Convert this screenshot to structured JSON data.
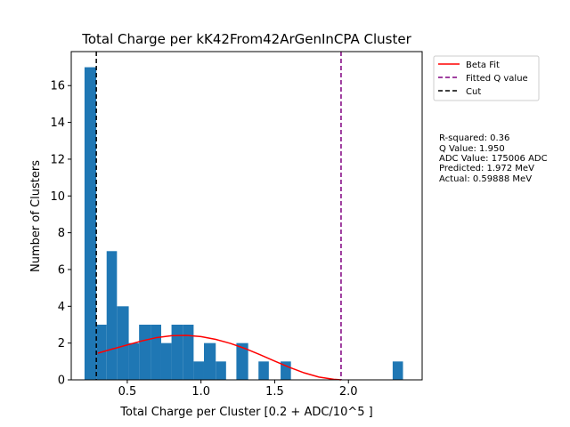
{
  "chart_data": {
    "type": "bar",
    "title": "Total Charge per kK42From42ArGenInCPA Cluster",
    "xlabel": "Total Charge per Cluster [0.2 + ADC/10^5 ]",
    "ylabel": "Number of Clusters",
    "xlim": [
      0.12,
      2.5
    ],
    "ylim": [
      0,
      17.85
    ],
    "xticks": [
      "0.5",
      "1.0",
      "1.5",
      "2.0"
    ],
    "xtick_values": [
      0.5,
      1.0,
      1.5,
      2.0
    ],
    "yticks": [
      "0",
      "2",
      "4",
      "6",
      "8",
      "10",
      "12",
      "14",
      "16"
    ],
    "ytick_values": [
      0,
      2,
      4,
      6,
      8,
      10,
      12,
      14,
      16
    ],
    "bar_color": "#1f77b4",
    "bins": [
      {
        "x0": 0.21,
        "x1": 0.29,
        "count": 17
      },
      {
        "x0": 0.29,
        "x1": 0.36,
        "count": 3
      },
      {
        "x0": 0.36,
        "x1": 0.43,
        "count": 7
      },
      {
        "x0": 0.43,
        "x1": 0.51,
        "count": 4
      },
      {
        "x0": 0.51,
        "x1": 0.58,
        "count": 2
      },
      {
        "x0": 0.58,
        "x1": 0.66,
        "count": 3
      },
      {
        "x0": 0.66,
        "x1": 0.73,
        "count": 3
      },
      {
        "x0": 0.73,
        "x1": 0.8,
        "count": 2
      },
      {
        "x0": 0.8,
        "x1": 0.88,
        "count": 3
      },
      {
        "x0": 0.88,
        "x1": 0.95,
        "count": 3
      },
      {
        "x0": 0.95,
        "x1": 1.02,
        "count": 1
      },
      {
        "x0": 1.02,
        "x1": 1.1,
        "count": 2
      },
      {
        "x0": 1.1,
        "x1": 1.17,
        "count": 1
      },
      {
        "x0": 1.17,
        "x1": 1.24,
        "count": 0
      },
      {
        "x0": 1.24,
        "x1": 1.32,
        "count": 2
      },
      {
        "x0": 1.32,
        "x1": 1.39,
        "count": 0
      },
      {
        "x0": 1.39,
        "x1": 1.46,
        "count": 1
      },
      {
        "x0": 1.46,
        "x1": 1.54,
        "count": 0
      },
      {
        "x0": 1.54,
        "x1": 1.61,
        "count": 1
      },
      {
        "x0": 2.3,
        "x1": 2.37,
        "count": 1
      }
    ],
    "fit_curve": {
      "name": "Beta Fit",
      "color": "#ff0000",
      "x": [
        0.3,
        0.4,
        0.5,
        0.6,
        0.7,
        0.8,
        0.9,
        1.0,
        1.1,
        1.2,
        1.3,
        1.4,
        1.5,
        1.6,
        1.7,
        1.8,
        1.9,
        1.95
      ],
      "y": [
        1.45,
        1.68,
        1.9,
        2.12,
        2.3,
        2.4,
        2.42,
        2.35,
        2.2,
        1.98,
        1.7,
        1.37,
        1.02,
        0.68,
        0.38,
        0.15,
        0.03,
        0.0
      ]
    },
    "vlines": [
      {
        "name": "Fitted Q value",
        "x": 1.95,
        "color": "#800080"
      },
      {
        "name": "Cut",
        "x": 0.29,
        "color": "#000000"
      }
    ],
    "legend": {
      "placement": "outside-right-top",
      "entries": [
        "Beta Fit",
        "Fitted Q value",
        "Cut"
      ]
    },
    "annotations": [
      "R-squared: 0.36",
      "Q Value: 1.950",
      "ADC Value: 175006 ADC",
      "Predicted: 1.972 MeV",
      "Actual: 0.59888 MeV"
    ]
  }
}
